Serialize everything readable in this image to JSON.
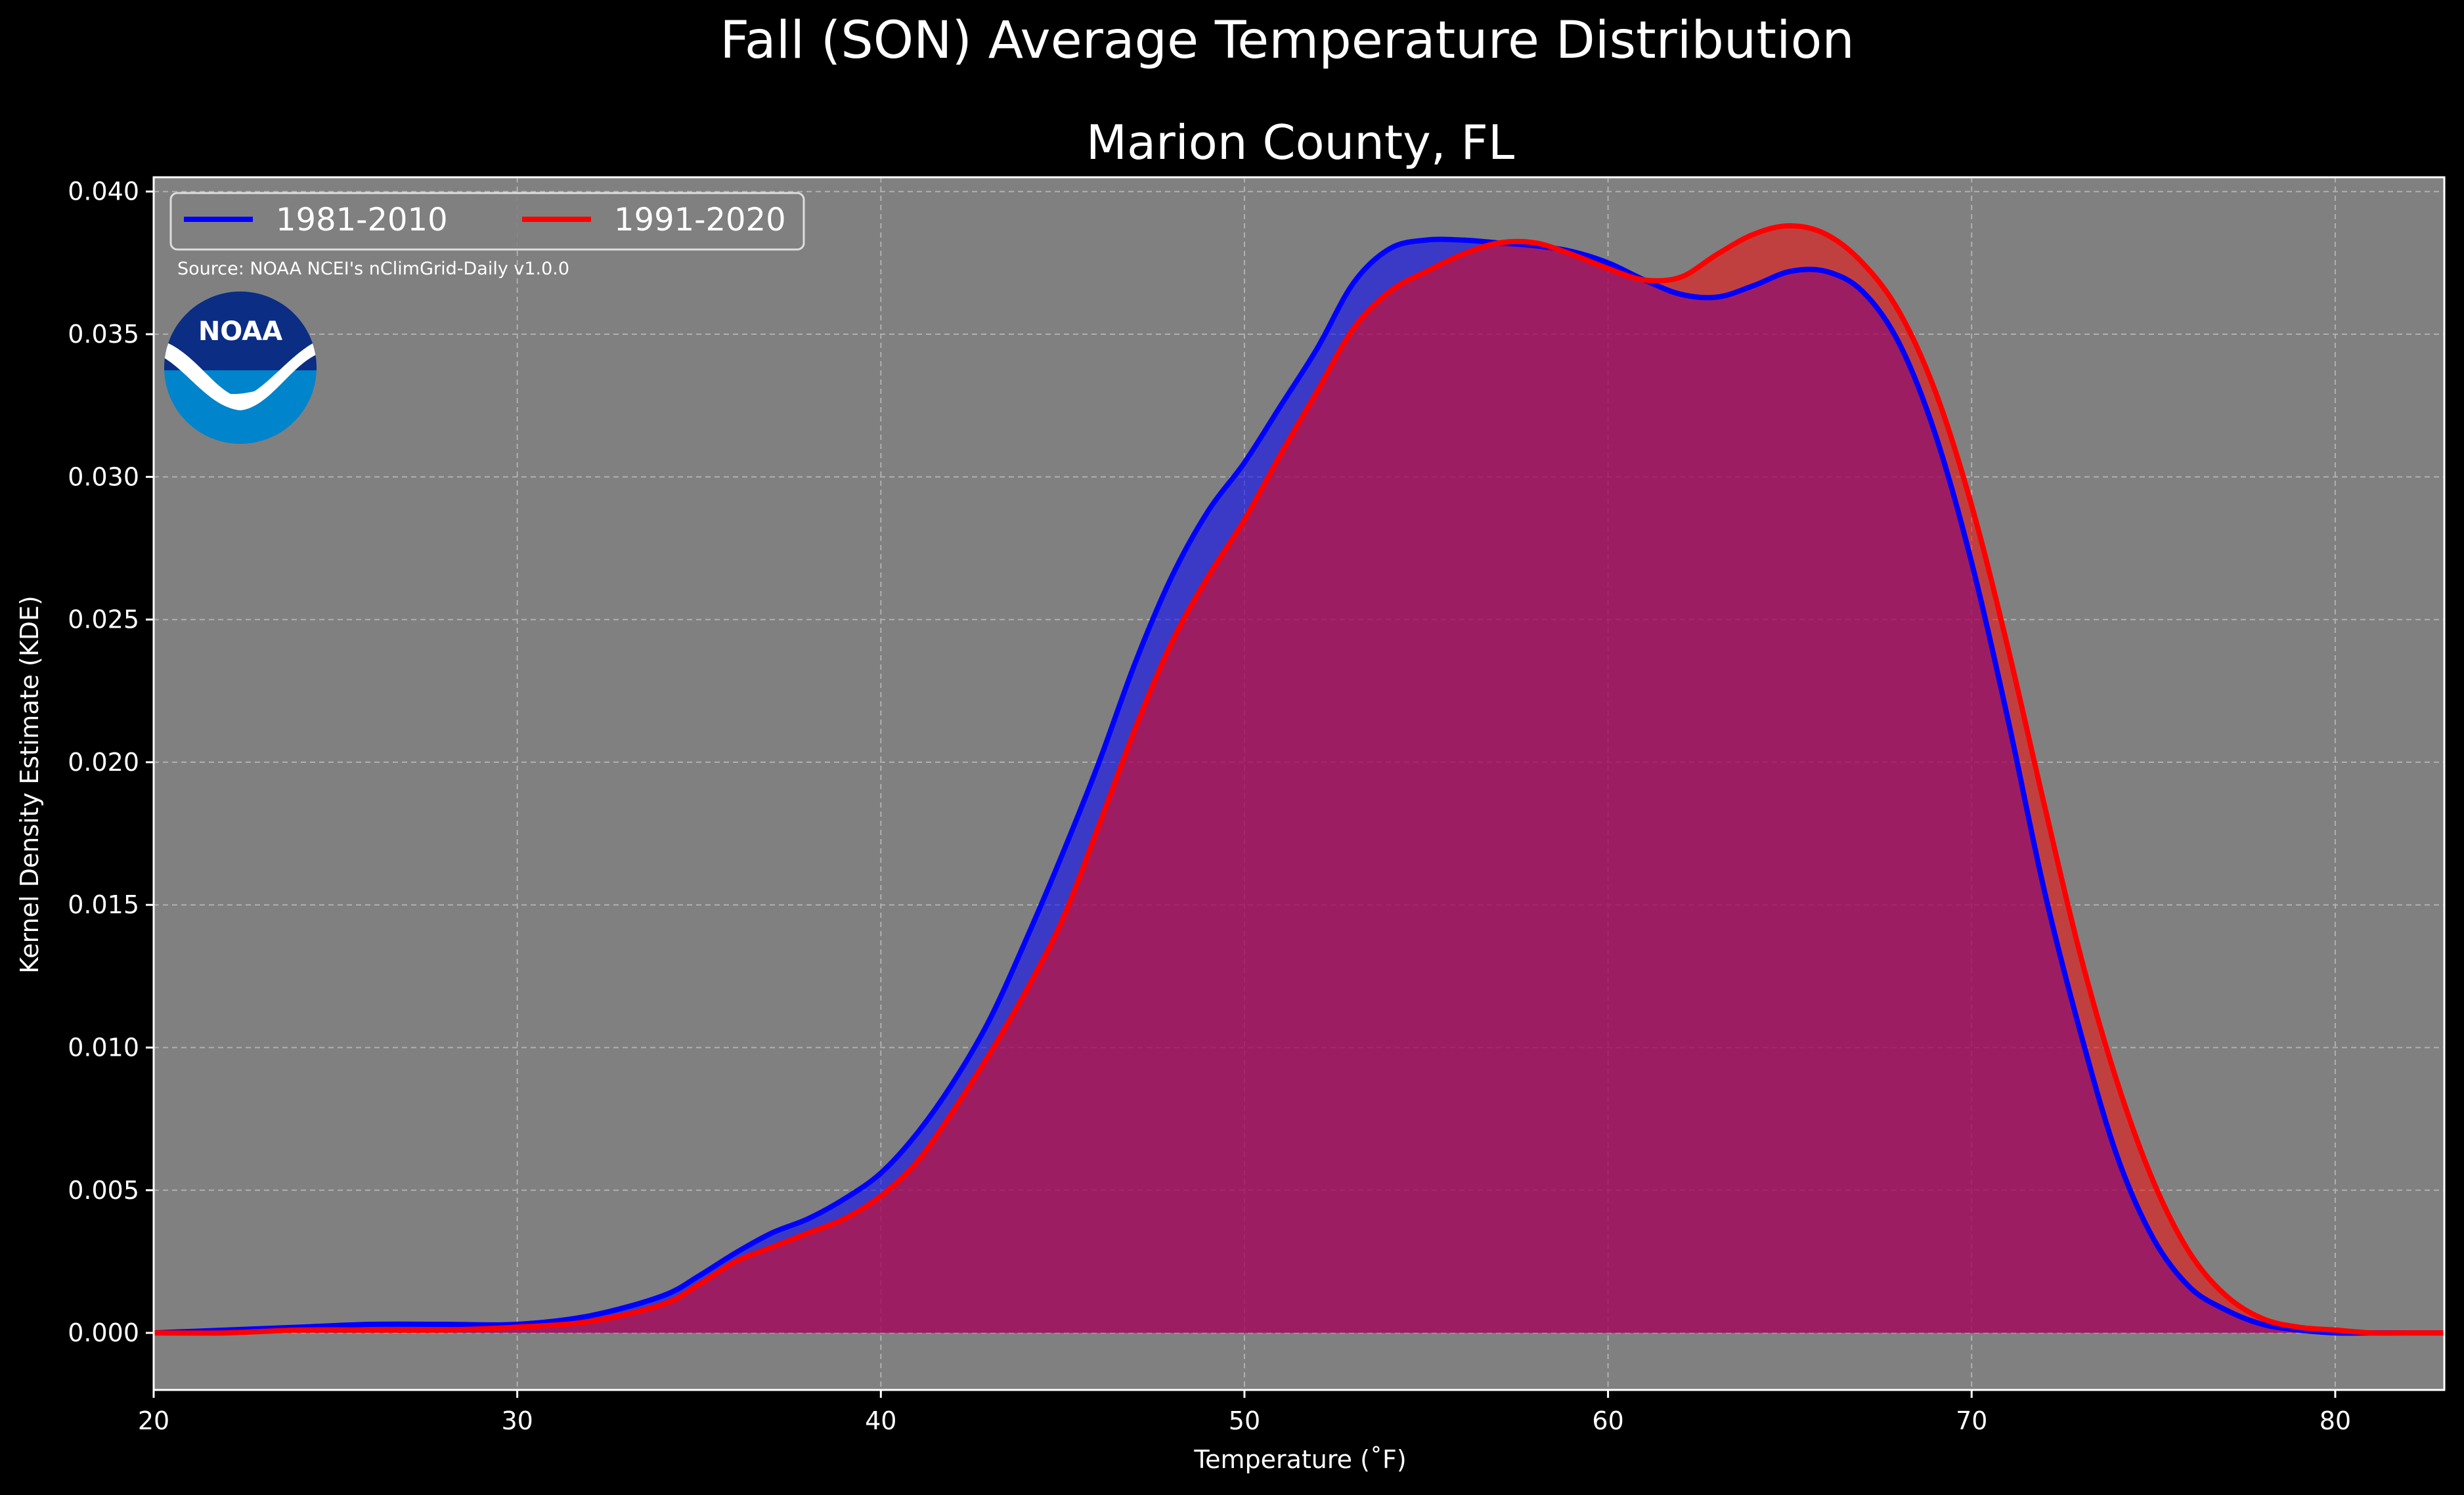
{
  "chart_data": {
    "type": "area",
    "title": "Fall (SON) Average Temperature Distribution",
    "subtitle": "Marion County, FL",
    "xlabel": "Temperature (˚F)",
    "ylabel": "Kernel Density Estimate (KDE)",
    "xlim": [
      20,
      83
    ],
    "ylim": [
      -0.002,
      0.0405
    ],
    "xticks": [
      20,
      30,
      40,
      50,
      60,
      70,
      80
    ],
    "yticks": [
      0.0,
      0.005,
      0.01,
      0.015,
      0.02,
      0.025,
      0.03,
      0.035,
      0.04
    ],
    "ytick_labels": [
      "0.000",
      "0.005",
      "0.010",
      "0.015",
      "0.020",
      "0.025",
      "0.030",
      "0.035",
      "0.040"
    ],
    "grid": true,
    "legend_position": "top-left",
    "source_note": "Source: NOAA NCEI's nClimGrid-Daily v1.0.0",
    "logo_text": "NOAA",
    "colors": {
      "background": "#000000",
      "plot_bg": "#808080",
      "blue": "#0000ff",
      "red": "#ff0000",
      "overlap_fill": "#9e1f5c"
    },
    "series": [
      {
        "name": "1981-2010",
        "color": "#0000ff",
        "x": [
          20,
          22,
          24,
          26,
          28,
          30,
          32,
          34,
          35,
          36,
          37,
          38,
          39,
          40,
          41,
          42,
          43,
          44,
          45,
          46,
          47,
          48,
          49,
          50,
          51,
          52,
          53,
          54,
          55,
          56,
          57,
          58,
          59,
          60,
          61,
          62,
          63,
          64,
          65,
          66,
          67,
          68,
          69,
          70,
          71,
          72,
          73,
          74,
          75,
          76,
          77,
          78,
          79,
          80,
          81,
          82,
          83
        ],
        "y": [
          0.0,
          0.0001,
          0.0002,
          0.0003,
          0.0003,
          0.0003,
          0.0006,
          0.0013,
          0.002,
          0.0028,
          0.0035,
          0.004,
          0.0047,
          0.0056,
          0.007,
          0.0088,
          0.011,
          0.0138,
          0.0168,
          0.02,
          0.0235,
          0.0265,
          0.0288,
          0.0305,
          0.0325,
          0.0345,
          0.0368,
          0.038,
          0.0383,
          0.0383,
          0.0382,
          0.0381,
          0.0379,
          0.0375,
          0.0369,
          0.0364,
          0.0363,
          0.0367,
          0.0372,
          0.0372,
          0.0365,
          0.0347,
          0.0315,
          0.027,
          0.0215,
          0.0155,
          0.0105,
          0.0062,
          0.0033,
          0.0016,
          0.0008,
          0.0003,
          0.0001,
          0.0,
          0.0,
          0.0,
          0.0
        ]
      },
      {
        "name": "1991-2020",
        "color": "#ff0000",
        "x": [
          20,
          22,
          24,
          26,
          28,
          30,
          32,
          34,
          35,
          36,
          37,
          38,
          39,
          40,
          41,
          42,
          43,
          44,
          45,
          46,
          47,
          48,
          49,
          50,
          51,
          52,
          53,
          54,
          55,
          56,
          57,
          58,
          59,
          60,
          61,
          62,
          63,
          64,
          65,
          66,
          67,
          68,
          69,
          70,
          71,
          72,
          73,
          74,
          75,
          76,
          77,
          78,
          79,
          80,
          81,
          82,
          83
        ],
        "y": [
          0.0,
          0.0,
          0.0001,
          0.0001,
          0.0001,
          0.0002,
          0.0004,
          0.001,
          0.0017,
          0.0025,
          0.003,
          0.0035,
          0.004,
          0.0048,
          0.006,
          0.0078,
          0.0098,
          0.012,
          0.0145,
          0.0178,
          0.0212,
          0.0242,
          0.0265,
          0.0285,
          0.0308,
          0.033,
          0.0352,
          0.0365,
          0.0372,
          0.0378,
          0.0382,
          0.0382,
          0.0378,
          0.0373,
          0.0369,
          0.037,
          0.0378,
          0.0385,
          0.0388,
          0.0385,
          0.0375,
          0.0358,
          0.033,
          0.029,
          0.024,
          0.0185,
          0.0132,
          0.0088,
          0.0053,
          0.0028,
          0.0013,
          0.0005,
          0.0002,
          0.0001,
          0.0,
          0.0,
          0.0
        ]
      }
    ]
  }
}
